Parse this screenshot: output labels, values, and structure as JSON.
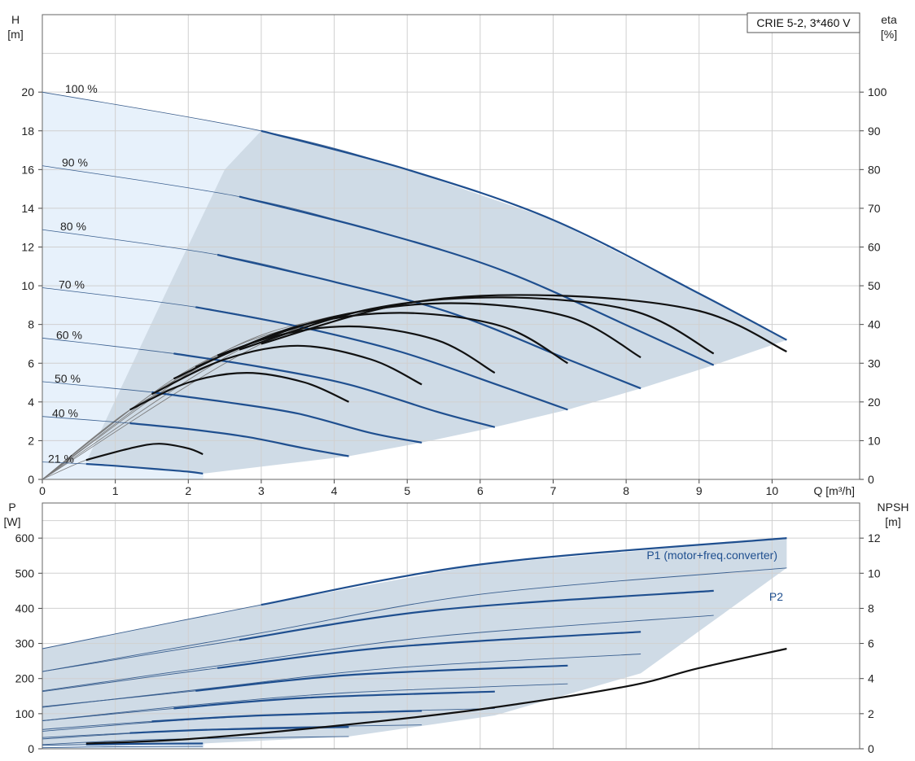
{
  "chart_data": [
    {
      "type": "line",
      "title": "CRIE 5-2, 3*460 V",
      "x_axis": {
        "label": "Q [m³/h]",
        "range": [
          0,
          11.2
        ],
        "ticks": [
          0,
          1,
          2,
          3,
          4,
          5,
          6,
          7,
          8,
          9,
          10
        ]
      },
      "y_axis_left": {
        "label_line1": "H",
        "label_line2": "[m]",
        "range": [
          0,
          24
        ],
        "ticks": [
          0,
          2,
          4,
          6,
          8,
          10,
          12,
          14,
          16,
          18,
          20
        ]
      },
      "y_axis_right": {
        "label_line1": "eta",
        "label_line2": "[%]",
        "range": [
          0,
          120
        ],
        "ticks": [
          0,
          10,
          20,
          30,
          40,
          50,
          60,
          70,
          80,
          90,
          100
        ]
      },
      "grid": true,
      "head_curves": [
        {
          "name": "100 %",
          "x": [
            0,
            3.0,
            5.0,
            7.0,
            9.0,
            10.2
          ],
          "y": [
            20.0,
            18.0,
            16.0,
            13.4,
            9.6,
            7.2
          ]
        },
        {
          "name": "90 %",
          "x": [
            0,
            2.7,
            4.5,
            6.3,
            8.1,
            9.2
          ],
          "y": [
            16.2,
            14.6,
            12.9,
            10.8,
            7.8,
            5.9
          ]
        },
        {
          "name": "80 %",
          "x": [
            0,
            2.4,
            4.0,
            5.6,
            7.2,
            8.2
          ],
          "y": [
            12.9,
            11.6,
            10.2,
            8.6,
            6.2,
            4.7
          ]
        },
        {
          "name": "70 %",
          "x": [
            0,
            2.1,
            3.5,
            4.9,
            6.3,
            7.2
          ],
          "y": [
            9.9,
            8.9,
            7.9,
            6.6,
            4.8,
            3.6
          ]
        },
        {
          "name": "60 %",
          "x": [
            0,
            1.8,
            3.0,
            4.2,
            5.4,
            6.2
          ],
          "y": [
            7.3,
            6.5,
            5.8,
            4.9,
            3.5,
            2.7
          ]
        },
        {
          "name": "50 %",
          "x": [
            0,
            1.5,
            2.5,
            3.5,
            4.5,
            5.2
          ],
          "y": [
            5.05,
            4.5,
            4.0,
            3.4,
            2.4,
            1.9
          ]
        },
        {
          "name": "40 %",
          "x": [
            0,
            1.2,
            2.0,
            2.8,
            3.6,
            4.2
          ],
          "y": [
            3.25,
            2.9,
            2.6,
            2.2,
            1.6,
            1.2
          ]
        },
        {
          "name": "21 %",
          "x": [
            0,
            0.6,
            1.0,
            1.5,
            2.0,
            2.2
          ],
          "y": [
            0.9,
            0.8,
            0.7,
            0.55,
            0.4,
            0.3
          ]
        }
      ],
      "operating_range_H": {
        "x": [
          0.6,
          2.2,
          4.2,
          5.2,
          6.2,
          7.2,
          8.2,
          9.2,
          10.2,
          10.2,
          9.0,
          7.0,
          5.0,
          3.0,
          2.5,
          1.8,
          0.6
        ],
        "y": [
          0.9,
          0.3,
          1.2,
          1.9,
          2.7,
          3.6,
          4.7,
          5.9,
          7.2,
          7.2,
          9.6,
          13.4,
          16.0,
          18.0,
          16.0,
          10.5,
          0.9
        ]
      },
      "efficiency_curves_eta_percent": [
        {
          "x": [
            0.6,
            1.2,
            1.6,
            2.0,
            2.2
          ],
          "y": [
            5,
            8,
            9.2,
            8,
            6.5
          ]
        },
        {
          "x": [
            1.2,
            2.0,
            2.8,
            3.6,
            4.2
          ],
          "y": [
            18,
            25,
            27.5,
            25,
            20
          ]
        },
        {
          "x": [
            1.5,
            2.5,
            3.5,
            4.5,
            5.2
          ],
          "y": [
            22,
            31,
            34.5,
            31,
            24.5
          ]
        },
        {
          "x": [
            1.8,
            3.0,
            4.2,
            5.4,
            6.2
          ],
          "y": [
            26,
            36,
            39.5,
            36,
            27.5
          ]
        },
        {
          "x": [
            2.1,
            3.5,
            4.9,
            6.3,
            7.2
          ],
          "y": [
            29,
            39.5,
            43,
            39.5,
            30
          ]
        },
        {
          "x": [
            2.4,
            4.0,
            5.6,
            7.2,
            8.2
          ],
          "y": [
            32,
            42,
            45.5,
            42,
            31.5
          ]
        },
        {
          "x": [
            2.7,
            4.5,
            6.3,
            8.1,
            9.2
          ],
          "y": [
            33.5,
            44,
            47,
            43.5,
            32.5
          ]
        },
        {
          "x": [
            3.0,
            5.0,
            7.0,
            9.0,
            10.2
          ],
          "y": [
            35,
            45.5,
            47.5,
            43.5,
            33
          ]
        }
      ],
      "speed_labels": [
        "100 %",
        "90 %",
        "80 %",
        "70 %",
        "60 %",
        "50 %",
        "40 %",
        "21 %"
      ]
    },
    {
      "type": "line",
      "x_axis": {
        "label": "",
        "range": [
          0,
          11.2
        ],
        "ticks": [
          0,
          1,
          2,
          3,
          4,
          5,
          6,
          7,
          8,
          9,
          10
        ]
      },
      "y_axis_left": {
        "label_line1": "P",
        "label_line2": "[W]",
        "range": [
          0,
          700
        ],
        "ticks": [
          0,
          100,
          200,
          300,
          400,
          500,
          600
        ]
      },
      "y_axis_right": {
        "label_line1": "NPSH",
        "label_line2": "[m]",
        "range": [
          0,
          14
        ],
        "ticks": [
          0,
          2,
          4,
          6,
          8,
          10,
          12
        ]
      },
      "grid": true,
      "series_labels": {
        "p1": "P1 (motor+freq.converter)",
        "p2": "P2"
      },
      "p1_curves": [
        {
          "x": [
            0,
            3.0,
            6.0,
            10.2
          ],
          "y": [
            285,
            410,
            525,
            600
          ]
        },
        {
          "x": [
            0,
            2.7,
            5.4,
            9.2
          ],
          "y": [
            220,
            310,
            395,
            450
          ]
        },
        {
          "x": [
            0,
            2.4,
            4.8,
            8.2
          ],
          "y": [
            163,
            230,
            290,
            333
          ]
        },
        {
          "x": [
            0,
            2.1,
            4.2,
            7.2
          ],
          "y": [
            120,
            165,
            210,
            237
          ]
        },
        {
          "x": [
            0,
            1.8,
            3.6,
            6.2
          ],
          "y": [
            80,
            115,
            145,
            163
          ]
        },
        {
          "x": [
            0,
            1.5,
            3.0,
            5.2
          ],
          "y": [
            55,
            78,
            95,
            108
          ]
        },
        {
          "x": [
            0,
            1.2,
            2.4,
            4.2
          ],
          "y": [
            32,
            45,
            55,
            62
          ]
        },
        {
          "x": [
            0,
            0.6,
            1.2,
            2.2
          ],
          "y": [
            10,
            12,
            14,
            15
          ]
        }
      ],
      "p2_curves": [
        {
          "x": [
            0,
            3.0,
            6.0,
            10.2
          ],
          "y": [
            220,
            330,
            440,
            515
          ]
        },
        {
          "x": [
            0,
            2.7,
            5.4,
            9.2
          ],
          "y": [
            165,
            245,
            320,
            380
          ]
        },
        {
          "x": [
            0,
            2.4,
            4.8,
            8.2
          ],
          "y": [
            118,
            175,
            230,
            270
          ]
        },
        {
          "x": [
            0,
            2.1,
            4.2,
            7.2
          ],
          "y": [
            80,
            125,
            160,
            185
          ]
        },
        {
          "x": [
            0,
            1.8,
            3.6,
            6.2
          ],
          "y": [
            50,
            80,
            100,
            115
          ]
        },
        {
          "x": [
            0,
            1.5,
            3.0,
            5.2
          ],
          "y": [
            28,
            47,
            60,
            68
          ]
        },
        {
          "x": [
            0,
            1.2,
            2.4,
            4.2
          ],
          "y": [
            12,
            24,
            30,
            35
          ]
        },
        {
          "x": [
            0,
            0.6,
            1.2,
            2.2
          ],
          "y": [
            3,
            5,
            6,
            7
          ]
        }
      ],
      "power_range": {
        "x": [
          0,
          2.2,
          4.2,
          6.2,
          8.2,
          10.2,
          10.2,
          6.0,
          3.0,
          0
        ],
        "y": [
          10,
          15,
          35,
          95,
          215,
          515,
          600,
          525,
          410,
          285
        ]
      },
      "npsh_curve": {
        "x": [
          0.6,
          2.0,
          4.0,
          6.0,
          8.0,
          9.0,
          10.2
        ],
        "y": [
          0.3,
          0.55,
          1.3,
          2.25,
          3.55,
          4.6,
          5.7
        ]
      }
    }
  ]
}
